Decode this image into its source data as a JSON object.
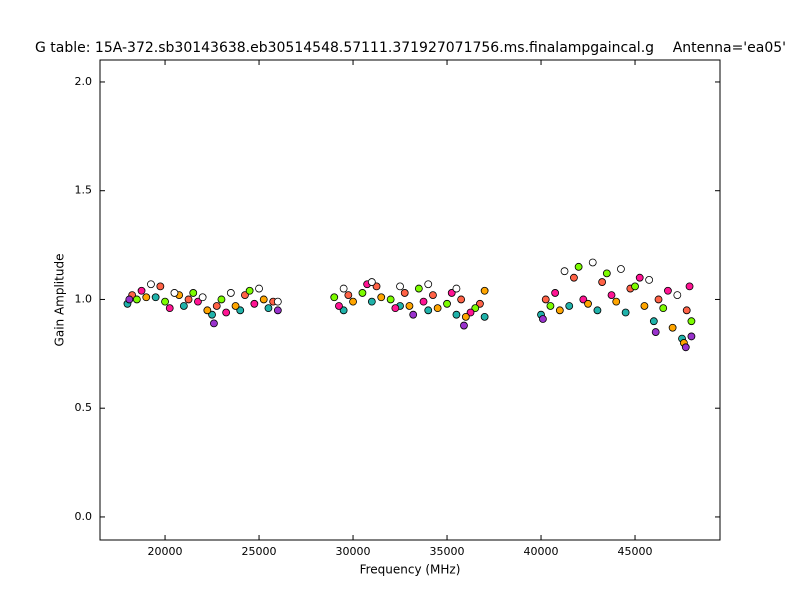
{
  "chart_data": {
    "type": "scatter",
    "title": "G table: 15A-372.sb30143638.eb30514548.57111.371927071756.ms.finalampgaincal.g",
    "subtitle": "Antenna='ea05'",
    "x_label": "Frequency (MHz)",
    "y_label": "Gain Amplitude",
    "xlim": [
      16540,
      49520
    ],
    "ylim": [
      -0.106,
      2.101
    ],
    "xticks": [
      20000,
      25000,
      30000,
      35000,
      40000,
      45000
    ],
    "yticks": [
      {
        "value": 0,
        "label": "0.0"
      },
      0.5,
      {
        "value": 1,
        "label": "1.0"
      },
      1.5,
      {
        "value": 2,
        "label": "2.0"
      }
    ],
    "grid": false,
    "series": [
      {
        "color": "#20b2aa",
        "x": [
          18000,
          19500,
          21000,
          22500,
          24000,
          25500,
          29500,
          31000,
          32500,
          34000,
          35500,
          37000,
          40000,
          41500,
          43000,
          44500,
          46000,
          47500
        ],
        "values": [
          0.98,
          1.01,
          0.97,
          0.93,
          0.95,
          0.96,
          0.95,
          0.99,
          0.97,
          0.95,
          0.93,
          0.92,
          0.93,
          0.97,
          0.95,
          0.94,
          0.9,
          0.82
        ]
      },
      {
        "color": "#ff6347",
        "x": [
          18250,
          19750,
          21250,
          22750,
          24250,
          25750,
          29750,
          31250,
          32750,
          34250,
          35750,
          36750,
          40250,
          41750,
          43250,
          44750,
          46250,
          47750
        ],
        "values": [
          1.02,
          1.06,
          1.0,
          0.97,
          1.02,
          0.99,
          1.02,
          1.06,
          1.03,
          1.02,
          1.0,
          0.98,
          1.0,
          1.1,
          1.08,
          1.05,
          1.0,
          0.95
        ]
      },
      {
        "color": "#7cfc00",
        "x": [
          18500,
          20000,
          21500,
          23000,
          24500,
          29000,
          30500,
          32000,
          33500,
          35000,
          36500,
          40500,
          42000,
          43500,
          45000,
          46500,
          48000
        ],
        "values": [
          1.0,
          0.99,
          1.03,
          1.0,
          1.04,
          1.01,
          1.03,
          1.0,
          1.05,
          0.98,
          0.96,
          0.97,
          1.15,
          1.12,
          1.06,
          0.96,
          0.9
        ]
      },
      {
        "color": "#ff1493",
        "x": [
          18750,
          20250,
          21750,
          23250,
          24750,
          29250,
          30750,
          32250,
          33750,
          35250,
          36250,
          40750,
          42250,
          43750,
          45250,
          46750,
          47900
        ],
        "values": [
          1.04,
          0.96,
          0.99,
          0.94,
          0.98,
          0.97,
          1.07,
          0.96,
          0.99,
          1.03,
          0.94,
          1.03,
          1.0,
          1.02,
          1.1,
          1.04,
          1.06
        ]
      },
      {
        "color": "#ffa500",
        "x": [
          19000,
          20750,
          22250,
          23750,
          25250,
          30000,
          31500,
          33000,
          34500,
          36000,
          37000,
          41000,
          42500,
          44000,
          45500,
          47000,
          47600
        ],
        "values": [
          1.01,
          1.02,
          0.95,
          0.97,
          1.0,
          0.99,
          1.01,
          0.97,
          0.96,
          0.92,
          1.04,
          0.95,
          0.98,
          0.99,
          0.97,
          0.87,
          0.8
        ]
      },
      {
        "color": "#ffffff",
        "x": [
          19250,
          20500,
          22000,
          23500,
          25000,
          26000,
          29500,
          31000,
          32500,
          34000,
          35500,
          41250,
          42750,
          44250,
          45750,
          47250
        ],
        "values": [
          1.07,
          1.03,
          1.01,
          1.03,
          1.05,
          0.99,
          1.05,
          1.08,
          1.06,
          1.07,
          1.05,
          1.13,
          1.17,
          1.14,
          1.09,
          1.02
        ]
      },
      {
        "color": "#9932cc",
        "x": [
          18100,
          22600,
          26000,
          33200,
          35900,
          40100,
          46100,
          47700,
          48000
        ],
        "values": [
          1.0,
          0.89,
          0.95,
          0.93,
          0.88,
          0.91,
          0.85,
          0.78,
          0.83
        ]
      }
    ]
  }
}
